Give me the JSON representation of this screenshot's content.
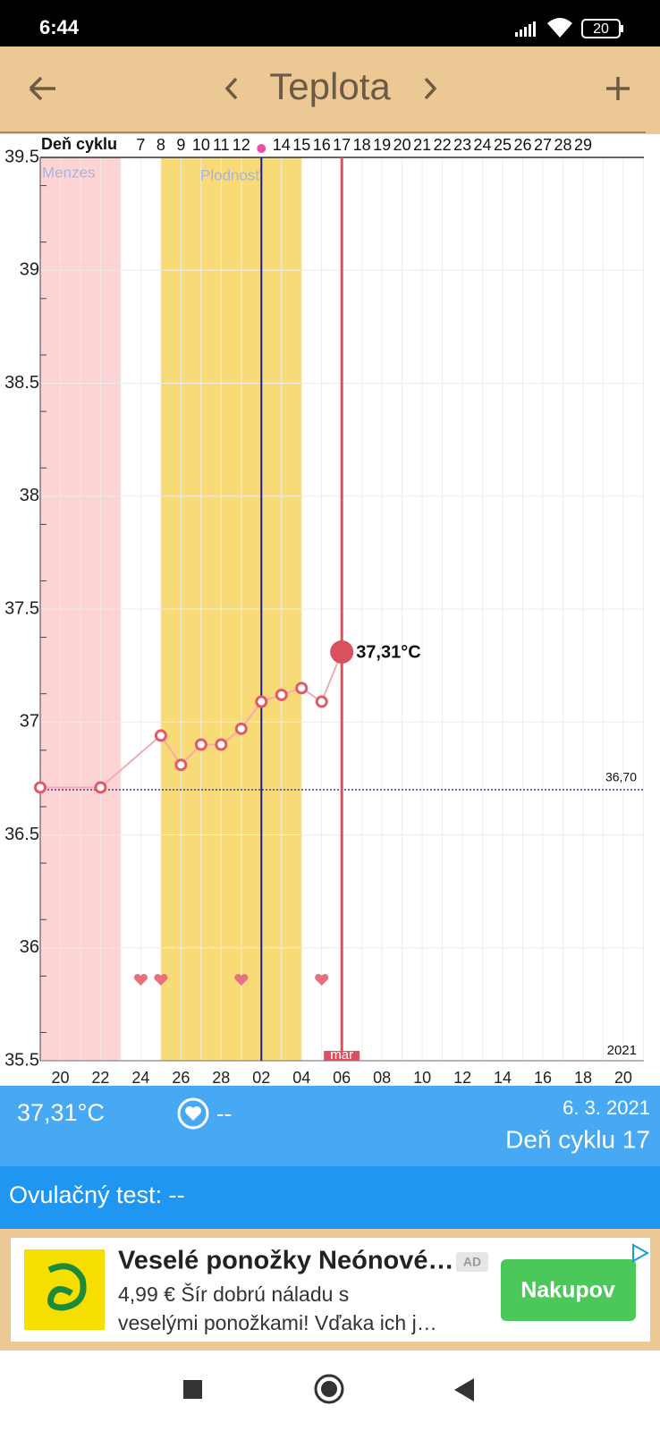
{
  "status_bar": {
    "time": "6:44",
    "battery": "20"
  },
  "header": {
    "title": "Teplota"
  },
  "chart_data": {
    "type": "line",
    "x_label": "Deň cyklu",
    "categories": [
      null,
      "20",
      null,
      "22",
      null,
      "24",
      null,
      "26",
      null,
      "28",
      null,
      "02",
      null,
      "04",
      null,
      "06",
      null,
      "08",
      null,
      "10",
      null,
      "12",
      null,
      "14",
      null,
      "16",
      null,
      "18",
      null,
      "20"
    ],
    "cycle_days": [
      null,
      null,
      null,
      null,
      null,
      "7",
      "8",
      "9",
      "10",
      "11",
      "12",
      null,
      "14",
      "15",
      "16",
      "17",
      "18",
      "19",
      "20",
      "21",
      "22",
      "23",
      "24",
      "25",
      "26",
      "27",
      "28",
      "29",
      null,
      null
    ],
    "values": [
      36.71,
      null,
      null,
      36.71,
      null,
      null,
      36.94,
      36.81,
      36.9,
      36.9,
      36.97,
      37.09,
      37.12,
      37.15,
      37.09,
      37.31,
      null,
      null,
      null,
      null,
      null,
      null,
      null,
      null,
      null,
      null,
      null,
      null,
      null,
      null
    ],
    "value_labels": [
      null,
      null,
      null,
      null,
      null,
      null,
      null,
      null,
      null,
      null,
      null,
      null,
      null,
      null,
      null,
      "37,31°C",
      null,
      null,
      null,
      null,
      null,
      null,
      null,
      null,
      null,
      null,
      null,
      null,
      null,
      null
    ],
    "color": "#e05a6a",
    "ylim": [
      35.5,
      39.5
    ],
    "yticks": [
      35.5,
      36,
      36.5,
      37,
      37.5,
      38,
      38.5,
      39,
      39.5
    ],
    "grid": true,
    "reference_line": {
      "value": 36.7,
      "label": "36,70"
    },
    "bands": [
      {
        "label": "Menzes"
      },
      {
        "label": "Plodnosť"
      }
    ],
    "month_label": "mar",
    "year_label": "2021"
  },
  "summary": {
    "temperature": "37,31°C",
    "intercourse": "--",
    "date": "6. 3. 2021",
    "cycle_day": "Deň cyklu 17"
  },
  "ovulation_test": "Ovulačný test: --",
  "ad": {
    "title": "Veselé ponožky Neónové…",
    "badge": "AD",
    "line1": "4,99 € Šír dobrú náladu s",
    "line2": "veselými ponožkami! Vďaka ich j…",
    "button": "Nakupov"
  }
}
